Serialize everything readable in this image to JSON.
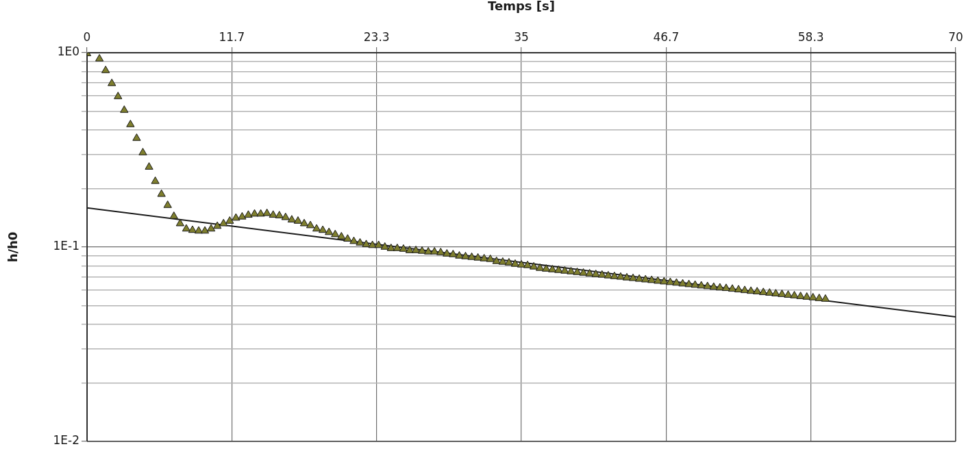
{
  "chart_data": {
    "type": "scatter",
    "xlabel": "Temps [s]",
    "ylabel": "h/h0",
    "log": "y",
    "grid": true,
    "marker": "triangle",
    "xlim": [
      0,
      70
    ],
    "xticks": [
      0,
      {
        "value": 11.6667,
        "label": "11.7"
      },
      {
        "value": 23.3333,
        "label": "23.3"
      },
      35,
      {
        "value": 46.6667,
        "label": "46.7"
      },
      {
        "value": 58.3333,
        "label": "58.3"
      },
      70
    ],
    "ylim": [
      0.01,
      1
    ],
    "yticks": [
      {
        "value": 0.01,
        "label": "1E-2"
      },
      {
        "value": 0.02,
        "label": null
      },
      {
        "value": 0.03,
        "label": null
      },
      {
        "value": 0.04,
        "label": null
      },
      {
        "value": 0.05,
        "label": null
      },
      {
        "value": 0.06,
        "label": null
      },
      {
        "value": 0.07,
        "label": null
      },
      {
        "value": 0.08,
        "label": null
      },
      {
        "value": 0.09,
        "label": null
      },
      {
        "value": 0.1,
        "label": "1E-1"
      },
      {
        "value": 0.2,
        "label": null
      },
      {
        "value": 0.3,
        "label": null
      },
      {
        "value": 0.4,
        "label": null
      },
      {
        "value": 0.5,
        "label": null
      },
      {
        "value": 0.6,
        "label": null
      },
      {
        "value": 0.7,
        "label": null
      },
      {
        "value": 0.8,
        "label": null
      },
      {
        "value": 0.9,
        "label": null
      },
      {
        "value": 1,
        "label": "1E0"
      }
    ],
    "series": [
      {
        "type": "line",
        "color": "#1a1a1a",
        "marker": "none",
        "line_style": "solid",
        "x": [
          0,
          70
        ],
        "values": [
          0.159,
          0.0437
        ]
      },
      {
        "type": "scatter",
        "color": "#7f7f2e",
        "x": [
          0,
          1,
          1.5,
          2,
          2.5,
          3,
          3.5,
          4,
          4.5,
          5,
          5.5,
          6,
          6.5,
          7,
          7.5,
          8,
          8.5,
          9,
          9.5,
          10,
          10.5,
          11,
          11.5,
          12,
          12.5,
          13,
          13.5,
          14,
          14.5,
          15,
          15.5,
          16,
          16.5,
          17,
          17.5,
          18,
          18.5,
          19,
          19.5,
          20,
          20.5,
          21,
          21.5,
          22,
          22.5,
          23,
          23.5,
          24,
          24.5,
          25,
          25.5,
          26,
          26.5,
          27,
          27.5,
          28,
          28.5,
          29,
          29.5,
          30,
          30.5,
          31,
          31.5,
          32,
          32.5,
          33,
          33.5,
          34,
          34.5,
          35,
          35.5,
          36,
          36.5,
          37,
          37.5,
          38,
          38.5,
          39,
          39.5,
          40,
          40.5,
          41,
          41.5,
          42,
          42.5,
          43,
          43.5,
          44,
          44.5,
          45,
          45.5,
          46,
          46.5,
          47,
          47.5,
          48,
          48.5,
          49,
          49.5,
          50,
          50.5,
          51,
          51.5,
          52,
          52.5,
          53,
          53.5,
          54,
          54.5,
          55,
          55.5,
          56,
          56.5,
          57,
          57.5,
          58,
          58.5,
          59,
          59.5
        ],
        "values": [
          0.99,
          0.93,
          0.81,
          0.695,
          0.595,
          0.506,
          0.427,
          0.363,
          0.306,
          0.258,
          0.218,
          0.187,
          0.164,
          0.144,
          0.132,
          0.124,
          0.122,
          0.121,
          0.121,
          0.124,
          0.128,
          0.132,
          0.136,
          0.141,
          0.143,
          0.146,
          0.148,
          0.148,
          0.149,
          0.146,
          0.145,
          0.142,
          0.138,
          0.136,
          0.132,
          0.129,
          0.124,
          0.122,
          0.119,
          0.116,
          0.113,
          0.11,
          0.107,
          0.105,
          0.103,
          0.102,
          0.102,
          0.1,
          0.0984,
          0.0984,
          0.0976,
          0.096,
          0.096,
          0.0953,
          0.0945,
          0.0945,
          0.0937,
          0.0922,
          0.0915,
          0.09,
          0.0893,
          0.0886,
          0.0879,
          0.0871,
          0.0865,
          0.0844,
          0.0837,
          0.083,
          0.0817,
          0.081,
          0.0804,
          0.0791,
          0.0778,
          0.0771,
          0.0765,
          0.0759,
          0.0753,
          0.0747,
          0.0741,
          0.0735,
          0.0729,
          0.0723,
          0.0718,
          0.0712,
          0.0706,
          0.0701,
          0.0695,
          0.069,
          0.0684,
          0.0679,
          0.0674,
          0.0668,
          0.0663,
          0.0658,
          0.0653,
          0.0647,
          0.0642,
          0.0637,
          0.0632,
          0.0627,
          0.0622,
          0.0617,
          0.0613,
          0.0608,
          0.0603,
          0.0598,
          0.0593,
          0.0589,
          0.0584,
          0.058,
          0.0575,
          0.0571,
          0.0566,
          0.0562,
          0.0557,
          0.0553,
          0.0549,
          0.0544,
          0.054
        ]
      }
    ]
  }
}
